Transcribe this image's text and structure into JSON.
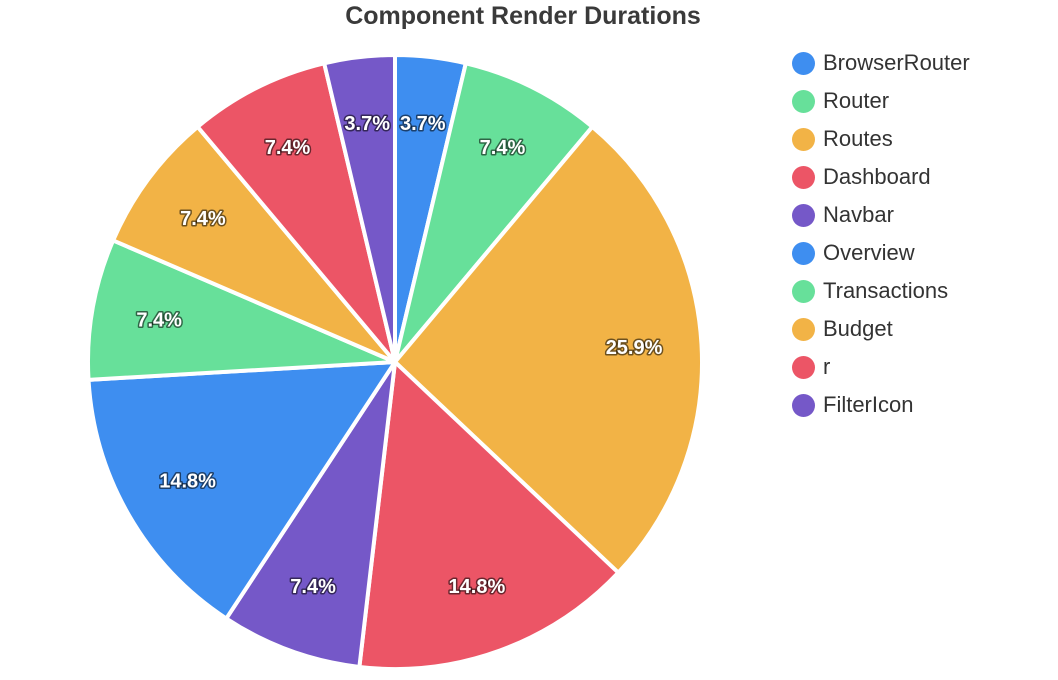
{
  "chart_data": {
    "type": "pie",
    "title": "Component Render Durations",
    "legend_position": "right",
    "slices": [
      {
        "label": "BrowserRouter",
        "value": 3.7,
        "display": "3.7%",
        "color": "#3e8ef0"
      },
      {
        "label": "Router",
        "value": 7.4,
        "display": "7.4%",
        "color": "#67e09a"
      },
      {
        "label": "Routes",
        "value": 25.9,
        "display": "25.9%",
        "color": "#f2b346"
      },
      {
        "label": "Dashboard",
        "value": 14.8,
        "display": "14.8%",
        "color": "#ec5566"
      },
      {
        "label": "Navbar",
        "value": 7.4,
        "display": "7.4%",
        "color": "#7558c8"
      },
      {
        "label": "Overview",
        "value": 14.8,
        "display": "14.8%",
        "color": "#3e8ef0"
      },
      {
        "label": "Transactions",
        "value": 7.4,
        "display": "7.4%",
        "color": "#67e09a"
      },
      {
        "label": "Budget",
        "value": 7.4,
        "display": "7.4%",
        "color": "#f2b346"
      },
      {
        "label": "r",
        "value": 7.4,
        "display": "7.4%",
        "color": "#ec5566"
      },
      {
        "label": "FilterIcon",
        "value": 3.7,
        "display": "3.7%",
        "color": "#7558c8"
      }
    ]
  }
}
